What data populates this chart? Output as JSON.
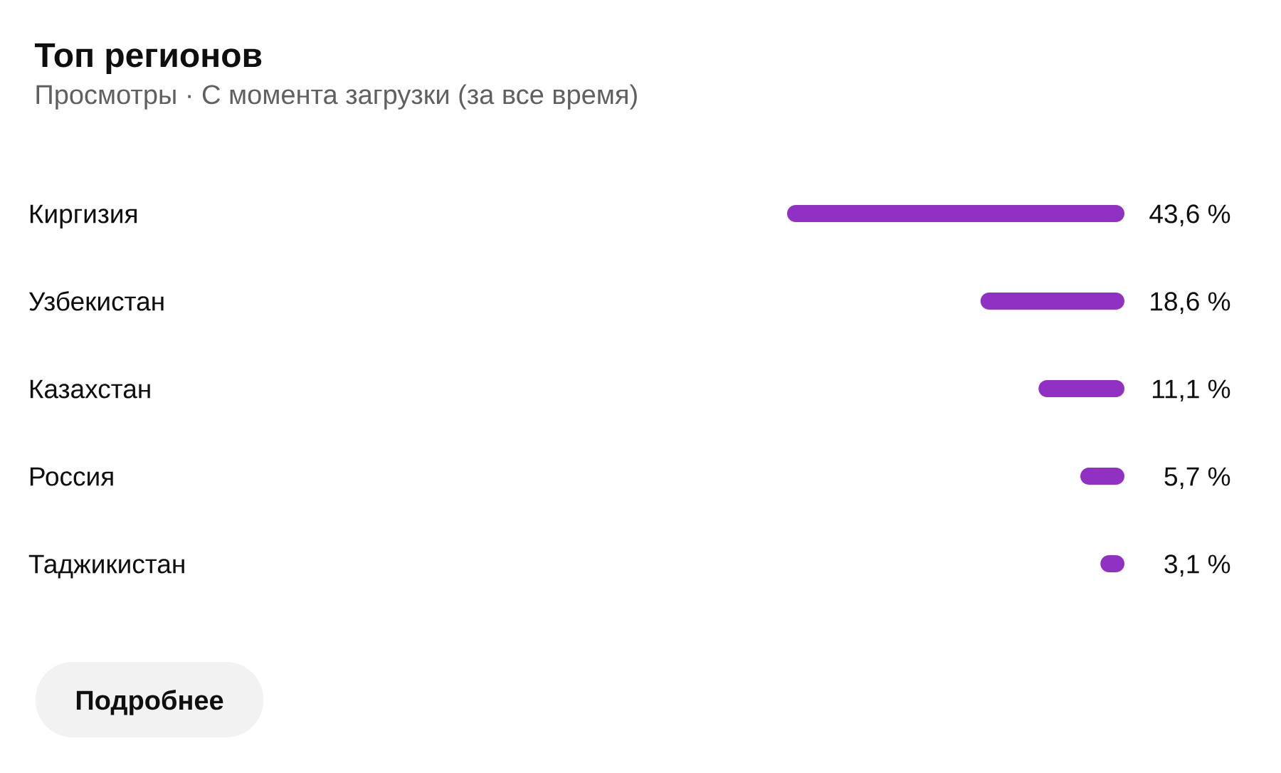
{
  "chart_data": {
    "type": "bar",
    "orientation": "horizontal",
    "title": "Топ регионов",
    "subtitle": "Просмотры · С момента загрузки (за все время)",
    "categories": [
      "Киргизия",
      "Узбекистан",
      "Казахстан",
      "Россия",
      "Таджикистан"
    ],
    "values": [
      43.6,
      18.6,
      11.1,
      5.7,
      3.1
    ],
    "value_labels": [
      "43,6 %",
      "18,6 %",
      "11,1 %",
      "5,7 %",
      "3,1 %"
    ],
    "color": "#9031c3",
    "xlim": [
      43.6,
      0
    ],
    "tick_labels": "y",
    "annotations": [
      "Подробнее"
    ]
  }
}
